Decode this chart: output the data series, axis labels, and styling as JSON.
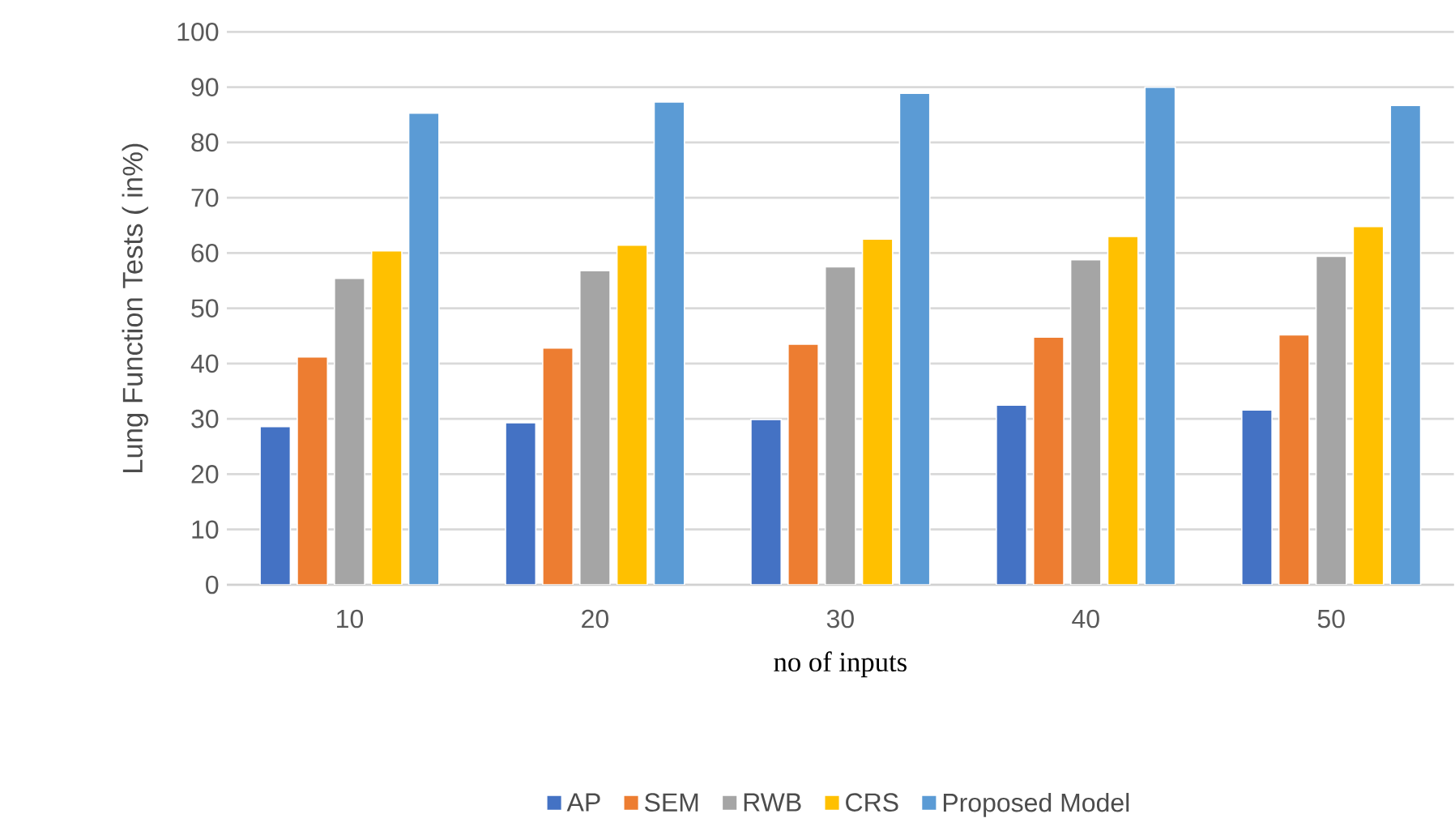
{
  "chart_data": {
    "type": "bar",
    "xlabel": "no of  inputs",
    "ylabel": "Lung Function Tests ( in%)",
    "categories": [
      "10",
      "20",
      "30",
      "40",
      "50"
    ],
    "series": [
      {
        "name": "AP",
        "color": "#4472c4",
        "values": [
          28.6,
          29.3,
          29.9,
          32.5,
          31.6
        ]
      },
      {
        "name": "SEM",
        "color": "#ed7d31",
        "values": [
          41.2,
          42.8,
          43.5,
          44.8,
          45.2
        ]
      },
      {
        "name": "RWB",
        "color": "#a5a5a5",
        "values": [
          55.4,
          56.8,
          57.5,
          58.8,
          59.4
        ]
      },
      {
        "name": "CRS",
        "color": "#ffc000",
        "values": [
          60.4,
          61.4,
          62.5,
          63.0,
          64.8
        ]
      },
      {
        "name": "Proposed Model",
        "color": "#5b9bd5",
        "values": [
          85.3,
          87.3,
          88.9,
          90.0,
          86.7
        ]
      }
    ],
    "ylim": [
      0,
      100
    ],
    "yticks": [
      0,
      10,
      20,
      30,
      40,
      50,
      60,
      70,
      80,
      90,
      100
    ],
    "grid": "y",
    "legend": "bottom"
  }
}
